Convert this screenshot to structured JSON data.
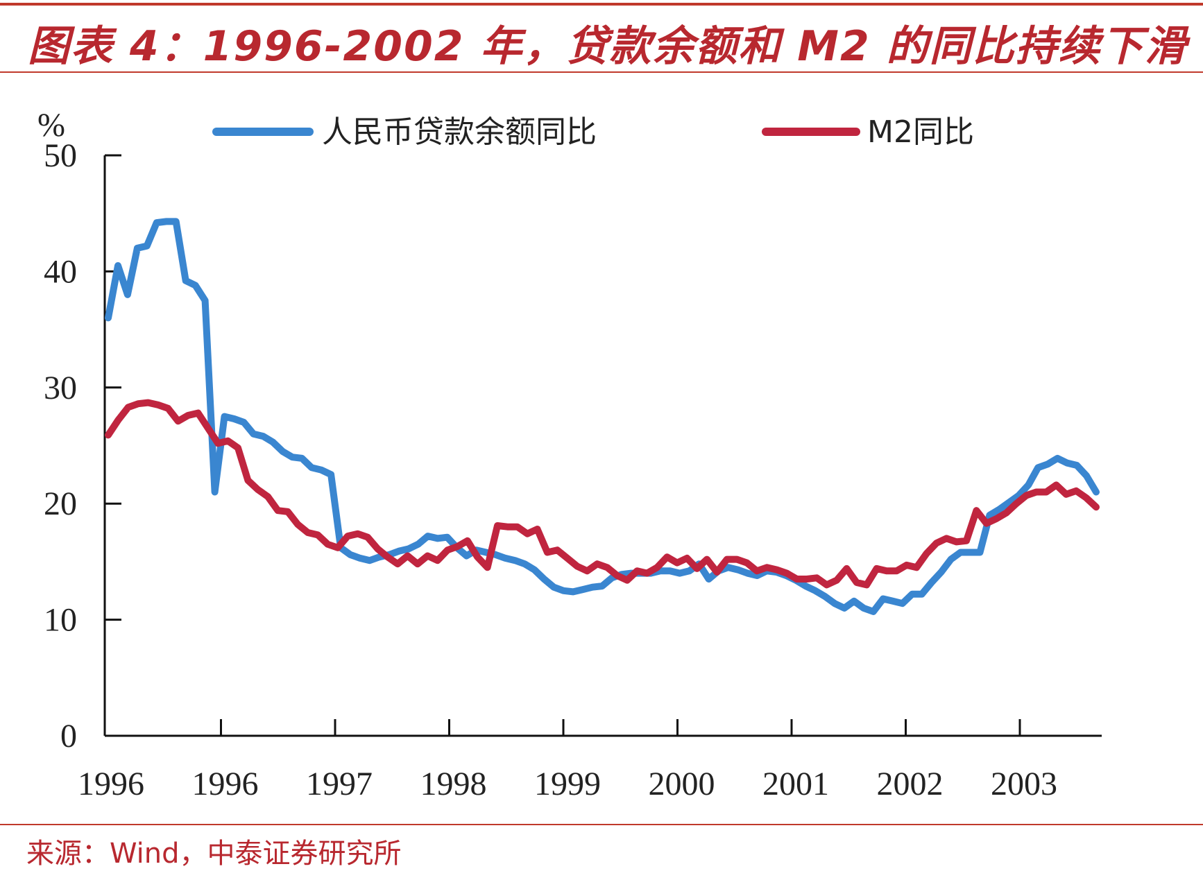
{
  "header": {
    "title": "图表 4：1996-2002 年，贷款余额和 M2 的同比持续下滑"
  },
  "footer": {
    "source": "来源：Wind，中泰证券研究所"
  },
  "colors": {
    "accent": "#b8282f",
    "loan_series": "#3a86d0",
    "m2_series": "#c0253f"
  },
  "chart_data": {
    "type": "line",
    "title": "图表 4：1996-2002 年，贷款余额和 M2 的同比持续下滑",
    "ylabel": "%",
    "xlabel": "",
    "ylim": [
      0,
      50
    ],
    "yticks": [
      "0",
      "10",
      "20",
      "30",
      "40",
      "50"
    ],
    "xticks": [
      "1996",
      "1996",
      "1997",
      "1998",
      "1999",
      "2000",
      "2001",
      "2002",
      "2003"
    ],
    "legend_position": "top",
    "grid": false,
    "series": [
      {
        "name": "人民币贷款余额同比",
        "color": "#3a86d0",
        "values": [
          36,
          40.5,
          38,
          42,
          42.2,
          44.2,
          44.3,
          44.3,
          39.2,
          38.8,
          37.5,
          21,
          27.5,
          27.3,
          27,
          26,
          25.8,
          25.3,
          24.5,
          24,
          23.9,
          23.1,
          22.9,
          22.5,
          16.2,
          15.6,
          15.3,
          15.1,
          15.4,
          15.6,
          15.9,
          16.1,
          16.5,
          17.2,
          17.0,
          17.1,
          16.2,
          15.5,
          16.0,
          15.8,
          15.6,
          15.3,
          15.1,
          14.8,
          14.3,
          13.5,
          12.8,
          12.5,
          12.4,
          12.6,
          12.8,
          12.9,
          13.6,
          13.9,
          14.0,
          14.0,
          14.0,
          14.2,
          14.2,
          14.0,
          14.2,
          14.8,
          13.5,
          14.2,
          14.5,
          14.3,
          14.0,
          13.8,
          14.2,
          14.1,
          13.8,
          13.4,
          12.9,
          12.5,
          12.0,
          11.4,
          11.0,
          11.6,
          11.0,
          10.7,
          11.8,
          11.6,
          11.4,
          12.2,
          12.2,
          13.2,
          14.1,
          15.2,
          15.8,
          15.8,
          15.8,
          19.0,
          19.5,
          20.1,
          20.7,
          21.6,
          23.1,
          23.4,
          23.9,
          23.5,
          23.3,
          22.4,
          21.0
        ]
      },
      {
        "name": "M2同比",
        "color": "#c0253f",
        "values": [
          25.9,
          27.2,
          28.3,
          28.6,
          28.7,
          28.5,
          28.2,
          27.1,
          27.6,
          27.8,
          26.5,
          25.2,
          25.4,
          24.8,
          22.0,
          21.2,
          20.6,
          19.4,
          19.3,
          18.2,
          17.5,
          17.3,
          16.5,
          16.2,
          17.2,
          17.4,
          17.1,
          16.1,
          15.4,
          14.8,
          15.5,
          14.8,
          15.5,
          15.1,
          16.0,
          16.3,
          16.8,
          15.4,
          14.5,
          18.1,
          18.0,
          18.0,
          17.4,
          17.8,
          15.8,
          16.0,
          15.3,
          14.6,
          14.2,
          14.8,
          14.5,
          13.8,
          13.4,
          14.2,
          14.0,
          14.5,
          15.4,
          14.9,
          15.3,
          14.4,
          15.2,
          14.1,
          15.2,
          15.2,
          14.9,
          14.2,
          14.5,
          14.3,
          14.0,
          13.5,
          13.5,
          13.6,
          13.0,
          13.4,
          14.4,
          13.2,
          13.0,
          14.4,
          14.2,
          14.2,
          14.7,
          14.5,
          15.7,
          16.6,
          17.0,
          16.7,
          16.8,
          19.4,
          18.3,
          18.7,
          19.2,
          20.0,
          20.7,
          21.0,
          21.0,
          21.6,
          20.8,
          21.1,
          20.5,
          19.7
        ]
      }
    ]
  }
}
